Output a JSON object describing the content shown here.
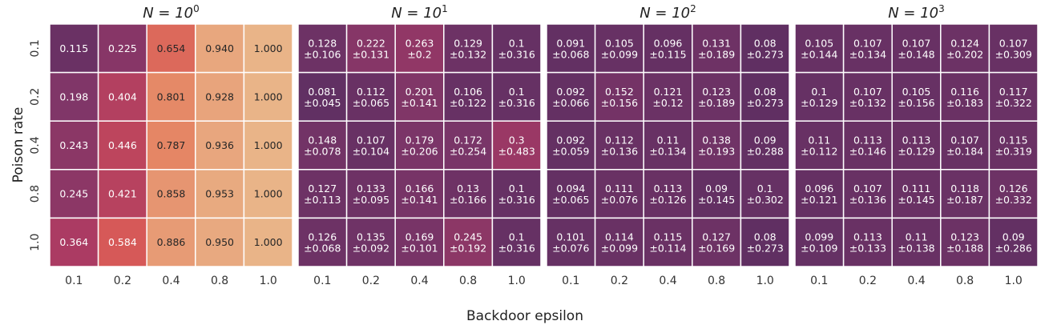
{
  "chart_data": {
    "type": "heatmap",
    "ylabel": "Poison rate",
    "xlabel": "Backdoor epsilon",
    "x_ticks": [
      "0.1",
      "0.2",
      "0.4",
      "0.8",
      "1.0"
    ],
    "y_ticks": [
      "0.1",
      "0.2",
      "0.4",
      "0.8",
      "1.0"
    ],
    "value_range": [
      0,
      1
    ],
    "colormap": "flare_r",
    "panels": [
      {
        "title": "N = 10^0",
        "title_base": "N = 10",
        "title_exp": "0",
        "values": [
          [
            0.115,
            0.225,
            0.654,
            0.94,
            1.0
          ],
          [
            0.198,
            0.404,
            0.801,
            0.928,
            1.0
          ],
          [
            0.243,
            0.446,
            0.787,
            0.936,
            1.0
          ],
          [
            0.245,
            0.421,
            0.858,
            0.953,
            1.0
          ],
          [
            0.364,
            0.584,
            0.886,
            0.95,
            1.0
          ]
        ],
        "labels": [
          [
            "0.115",
            "0.225",
            "0.654",
            "0.940",
            "1.000"
          ],
          [
            "0.198",
            "0.404",
            "0.801",
            "0.928",
            "1.000"
          ],
          [
            "0.243",
            "0.446",
            "0.787",
            "0.936",
            "1.000"
          ],
          [
            "0.245",
            "0.421",
            "0.858",
            "0.953",
            "1.000"
          ],
          [
            "0.364",
            "0.584",
            "0.886",
            "0.950",
            "1.000"
          ]
        ]
      },
      {
        "title": "N = 10^1",
        "title_base": "N = 10",
        "title_exp": "1",
        "values": [
          [
            0.128,
            0.222,
            0.263,
            0.129,
            0.1
          ],
          [
            0.081,
            0.112,
            0.201,
            0.106,
            0.1
          ],
          [
            0.148,
            0.107,
            0.179,
            0.172,
            0.3
          ],
          [
            0.127,
            0.133,
            0.166,
            0.13,
            0.1
          ],
          [
            0.126,
            0.135,
            0.169,
            0.245,
            0.1
          ]
        ],
        "labels": [
          [
            "0.128",
            "0.222",
            "0.263",
            "0.129",
            "0.1"
          ],
          [
            "0.081",
            "0.112",
            "0.201",
            "0.106",
            "0.1"
          ],
          [
            "0.148",
            "0.107",
            "0.179",
            "0.172",
            "0.3"
          ],
          [
            "0.127",
            "0.133",
            "0.166",
            "0.13",
            "0.1"
          ],
          [
            "0.126",
            "0.135",
            "0.169",
            "0.245",
            "0.1"
          ]
        ],
        "std": [
          [
            "±0.106",
            "±0.131",
            "±0.2",
            "±0.132",
            "±0.316"
          ],
          [
            "±0.045",
            "±0.065",
            "±0.141",
            "±0.122",
            "±0.316"
          ],
          [
            "±0.078",
            "±0.104",
            "±0.206",
            "±0.254",
            "±0.483"
          ],
          [
            "±0.113",
            "±0.095",
            "±0.141",
            "±0.166",
            "±0.316"
          ],
          [
            "±0.068",
            "±0.092",
            "±0.101",
            "±0.192",
            "±0.316"
          ]
        ]
      },
      {
        "title": "N = 10^2",
        "title_base": "N = 10",
        "title_exp": "2",
        "values": [
          [
            0.091,
            0.105,
            0.096,
            0.131,
            0.08
          ],
          [
            0.092,
            0.152,
            0.121,
            0.123,
            0.08
          ],
          [
            0.092,
            0.112,
            0.11,
            0.138,
            0.09
          ],
          [
            0.094,
            0.111,
            0.113,
            0.09,
            0.1
          ],
          [
            0.101,
            0.114,
            0.115,
            0.127,
            0.08
          ]
        ],
        "labels": [
          [
            "0.091",
            "0.105",
            "0.096",
            "0.131",
            "0.08"
          ],
          [
            "0.092",
            "0.152",
            "0.121",
            "0.123",
            "0.08"
          ],
          [
            "0.092",
            "0.112",
            "0.11",
            "0.138",
            "0.09"
          ],
          [
            "0.094",
            "0.111",
            "0.113",
            "0.09",
            "0.1"
          ],
          [
            "0.101",
            "0.114",
            "0.115",
            "0.127",
            "0.08"
          ]
        ],
        "std": [
          [
            "±0.068",
            "±0.099",
            "±0.115",
            "±0.189",
            "±0.273"
          ],
          [
            "±0.066",
            "±0.156",
            "±0.12",
            "±0.189",
            "±0.273"
          ],
          [
            "±0.059",
            "±0.136",
            "±0.134",
            "±0.193",
            "±0.288"
          ],
          [
            "±0.065",
            "±0.076",
            "±0.126",
            "±0.145",
            "±0.302"
          ],
          [
            "±0.076",
            "±0.099",
            "±0.114",
            "±0.169",
            "±0.273"
          ]
        ]
      },
      {
        "title": "N = 10^3",
        "title_base": "N = 10",
        "title_exp": "3",
        "values": [
          [
            0.105,
            0.107,
            0.107,
            0.124,
            0.107
          ],
          [
            0.1,
            0.107,
            0.105,
            0.116,
            0.117
          ],
          [
            0.11,
            0.113,
            0.113,
            0.107,
            0.115
          ],
          [
            0.096,
            0.107,
            0.111,
            0.118,
            0.126
          ],
          [
            0.099,
            0.113,
            0.11,
            0.123,
            0.09
          ]
        ],
        "labels": [
          [
            "0.105",
            "0.107",
            "0.107",
            "0.124",
            "0.107"
          ],
          [
            "0.1",
            "0.107",
            "0.105",
            "0.116",
            "0.117"
          ],
          [
            "0.11",
            "0.113",
            "0.113",
            "0.107",
            "0.115"
          ],
          [
            "0.096",
            "0.107",
            "0.111",
            "0.118",
            "0.126"
          ],
          [
            "0.099",
            "0.113",
            "0.11",
            "0.123",
            "0.09"
          ]
        ],
        "std": [
          [
            "±0.144",
            "±0.134",
            "±0.148",
            "±0.202",
            "±0.309"
          ],
          [
            "±0.129",
            "±0.132",
            "±0.156",
            "±0.183",
            "±0.322"
          ],
          [
            "±0.112",
            "±0.146",
            "±0.129",
            "±0.184",
            "±0.319"
          ],
          [
            "±0.121",
            "±0.136",
            "±0.145",
            "±0.187",
            "±0.332"
          ],
          [
            "±0.109",
            "±0.133",
            "±0.138",
            "±0.188",
            "±0.286"
          ]
        ]
      }
    ]
  }
}
